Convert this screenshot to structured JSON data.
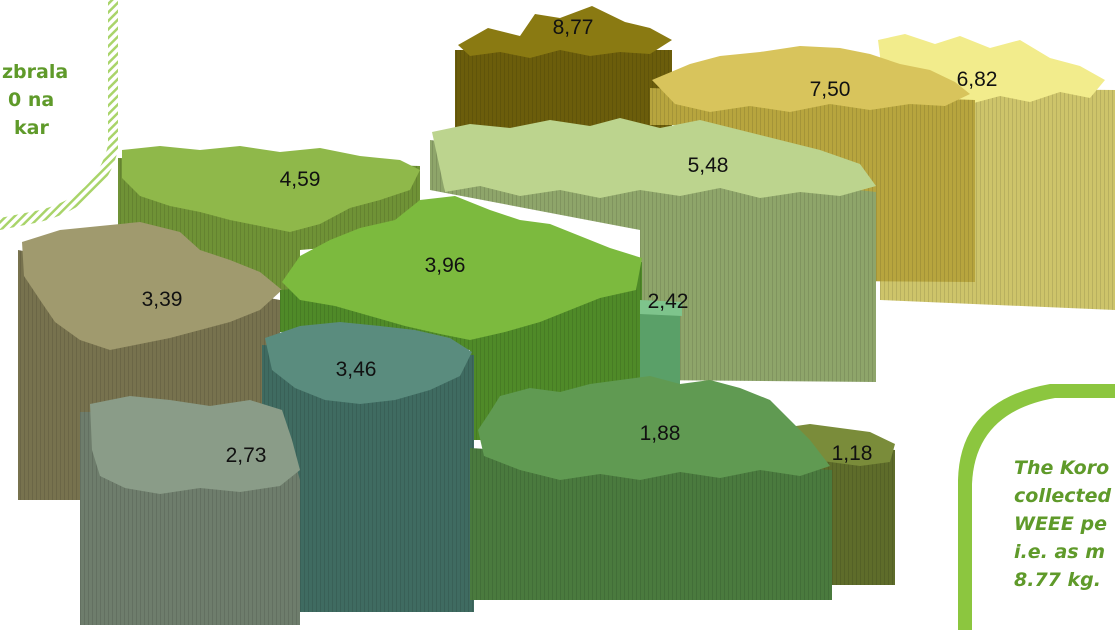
{
  "regions": [
    {
      "id": "r877",
      "value": "8,77",
      "color_top": "#8a7a12",
      "color_side": "#6b5d0b"
    },
    {
      "id": "r750",
      "value": "7,50",
      "color_top": "#d8c45c",
      "color_side": "#b7a53e"
    },
    {
      "id": "r682",
      "value": "6,82",
      "color_top": "#f2ec8c",
      "color_side": "#cdc46a"
    },
    {
      "id": "r548",
      "value": "5,48",
      "color_top": "#bcd48e",
      "color_side": "#8ea56a"
    },
    {
      "id": "r459",
      "value": "4,59",
      "color_top": "#8fb84a",
      "color_side": "#6f9236"
    },
    {
      "id": "r396",
      "value": "3,96",
      "color_top": "#7cba3e",
      "color_side": "#4f8a28"
    },
    {
      "id": "r242",
      "value": "2,42",
      "color_top": "#7ec48c",
      "color_side": "#5aa068"
    },
    {
      "id": "r339",
      "value": "3,39",
      "color_top": "#a09a6e",
      "color_side": "#77724e"
    },
    {
      "id": "r346",
      "value": "3,46",
      "color_top": "#5a8c7e",
      "color_side": "#3f6b61"
    },
    {
      "id": "r273",
      "value": "2,73",
      "color_top": "#8a9c88",
      "color_side": "#6e7d6c"
    },
    {
      "id": "r188",
      "value": "1,88",
      "color_top": "#609a52",
      "color_side": "#4a7a3e"
    },
    {
      "id": "r118",
      "value": "1,18",
      "color_top": "#7a8c3a",
      "color_side": "#5e6c2a"
    }
  ],
  "notes": {
    "slo": [
      "zbrala",
      "0 na",
      "kar"
    ],
    "en": [
      "The Koro",
      "collected",
      "WEEE pe",
      "i.e. as m",
      "8.77 kg."
    ]
  },
  "accent_color": "#8cc63f"
}
